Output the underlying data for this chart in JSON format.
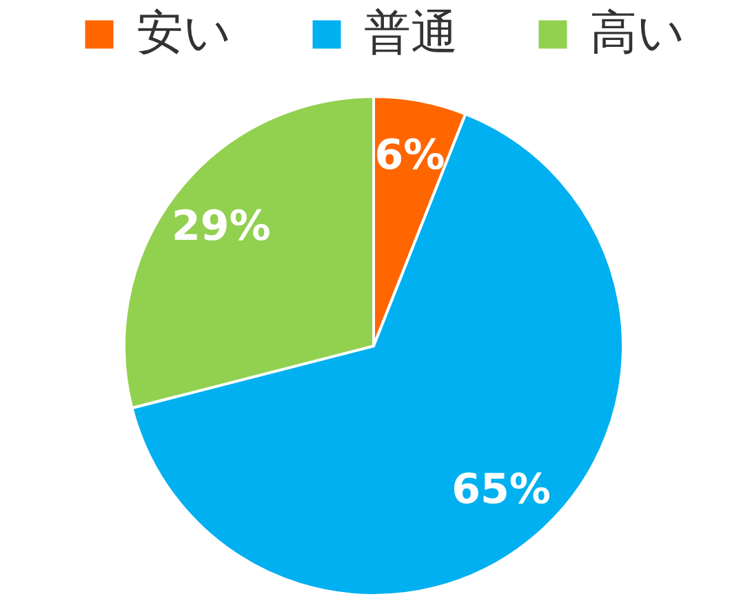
{
  "chart_data": {
    "type": "pie",
    "categories": [
      "安い",
      "普通",
      "高い"
    ],
    "values": [
      6,
      65,
      29
    ],
    "colors": [
      "#ff6600",
      "#00b0f0",
      "#92d050"
    ],
    "value_labels": [
      "6%",
      "65%",
      "29%"
    ],
    "legend": "top"
  }
}
